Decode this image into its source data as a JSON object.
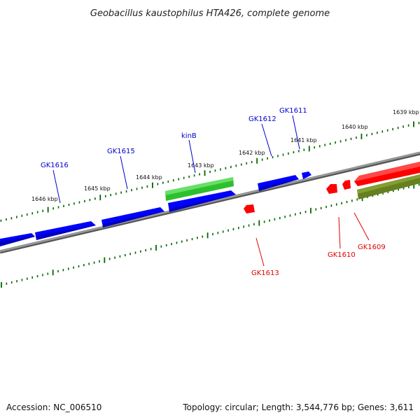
{
  "title": "Geobacillus kaustophilus HTA426, complete genome",
  "footer": {
    "accession": "Accession: NC_006510",
    "summary": "Topology: circular; Length: 3,544,776 bp; Genes: 3,611"
  },
  "scale": {
    "labels": [
      "1646 kbp",
      "1645 kbp",
      "1644 kbp",
      "1643 kbp",
      "1642 kbp",
      "1641 kbp",
      "1640 kbp",
      "1639 kbp"
    ]
  },
  "genes": {
    "forward": [
      {
        "label": "GK1616",
        "color": "#0000ff"
      },
      {
        "label": "GK1615",
        "color": "#0000ff"
      },
      {
        "label": "kinB",
        "color": "#0000ff"
      },
      {
        "label": "GK1612",
        "color": "#0000ff"
      },
      {
        "label": "GK1611",
        "color": "#0000ff"
      }
    ],
    "reverse": [
      {
        "label": "GK1613",
        "color": "#ff0000"
      },
      {
        "label": "GK1610",
        "color": "#ff0000"
      },
      {
        "label": "GK1609",
        "color": "#ff0000"
      }
    ]
  },
  "colors": {
    "forward_gene": "#0000ff",
    "reverse_gene": "#ff0000",
    "forward_feature": "#33cc33",
    "reverse_feature": "#667f1f",
    "backbone": "#808080",
    "tick": "#006600",
    "forward_label": "#0000cc",
    "reverse_label": "#dd0000"
  }
}
